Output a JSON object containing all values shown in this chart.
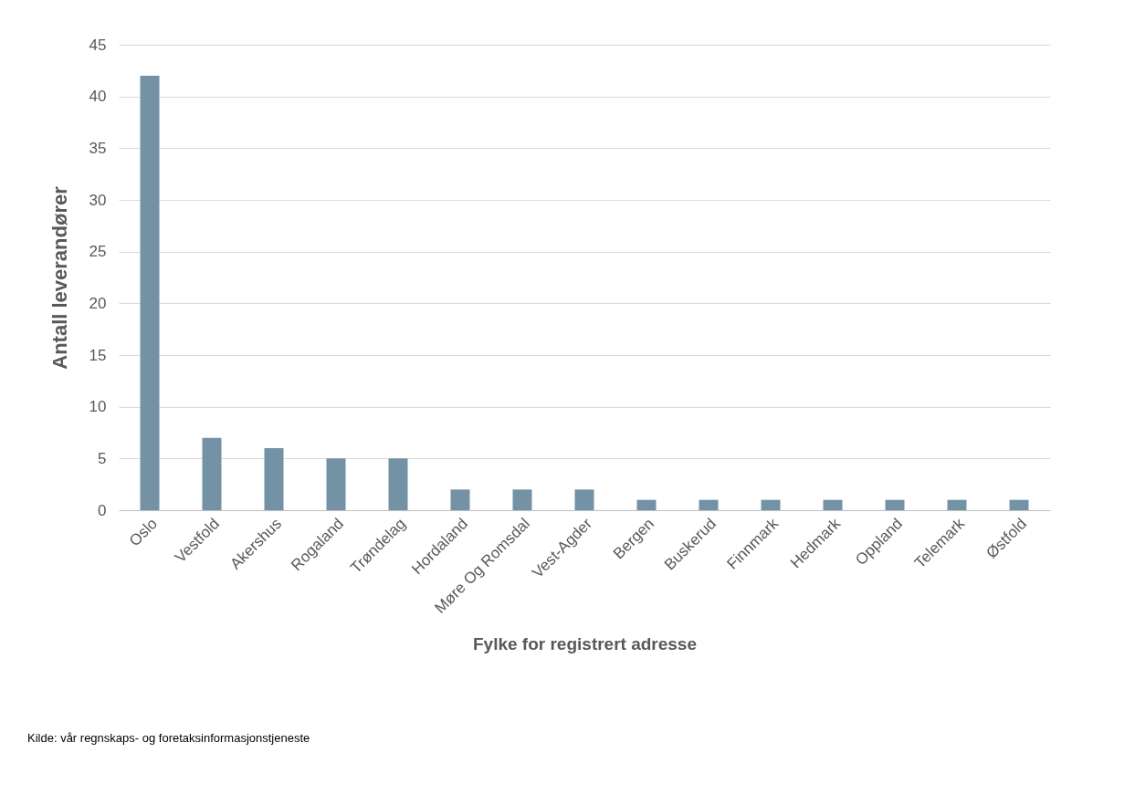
{
  "chart_data": {
    "type": "bar",
    "xlabel": "Fylke for registrert adresse",
    "ylabel": "Antall leverandører",
    "categories": [
      "Oslo",
      "Vestfold",
      "Akershus",
      "Rogaland",
      "Trøndelag",
      "Hordaland",
      "Møre Og Romsdal",
      "Vest-Agder",
      "Bergen",
      "Buskerud",
      "Finnmark",
      "Hedmark",
      "Oppland",
      "Telemark",
      "Østfold"
    ],
    "values": [
      42,
      7,
      6,
      5,
      5,
      2,
      2,
      2,
      1,
      1,
      1,
      1,
      1,
      1,
      1
    ],
    "color": "#7492a6",
    "ylim": [
      0,
      45
    ],
    "yticks": [
      0,
      5,
      10,
      15,
      20,
      25,
      30,
      35,
      40,
      45
    ],
    "grid": "y",
    "annotations": [
      "Kilde: vår regnskaps- og foretaksinformasjonstjeneste"
    ]
  }
}
